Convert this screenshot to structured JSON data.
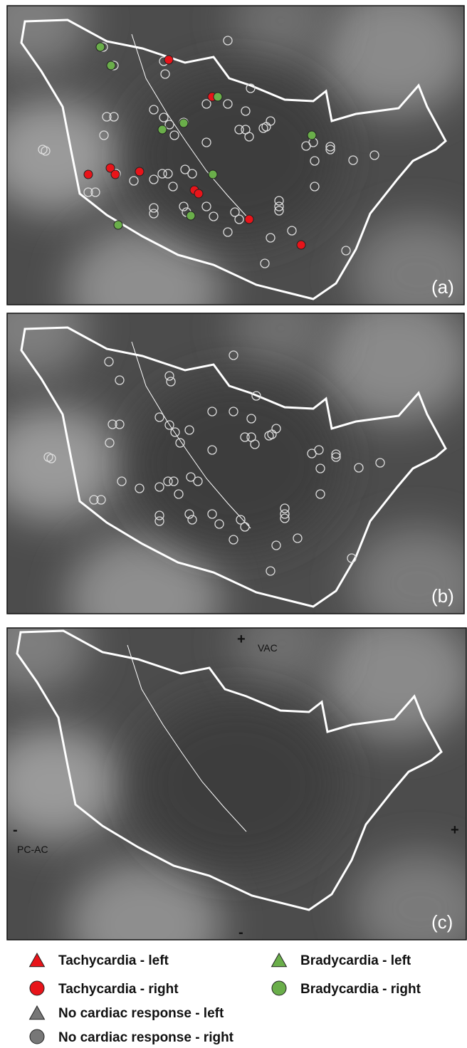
{
  "panels": [
    {
      "label": "(a)"
    },
    {
      "label": "(b)"
    },
    {
      "label": "(c)",
      "axes": {
        "vertical": "VAC",
        "horizontal": "PC-AC",
        "top": "+",
        "bottom": "-",
        "left": "-",
        "right": "+"
      }
    }
  ],
  "legend": [
    {
      "label": "Tachycardia - left"
    },
    {
      "label": "Tachycardia - right"
    },
    {
      "label": "No cardiac response - left"
    },
    {
      "label": "No cardiac response - right"
    },
    {
      "label": "Bradycardia - left"
    },
    {
      "label": "Bradycardia - right"
    }
  ]
}
